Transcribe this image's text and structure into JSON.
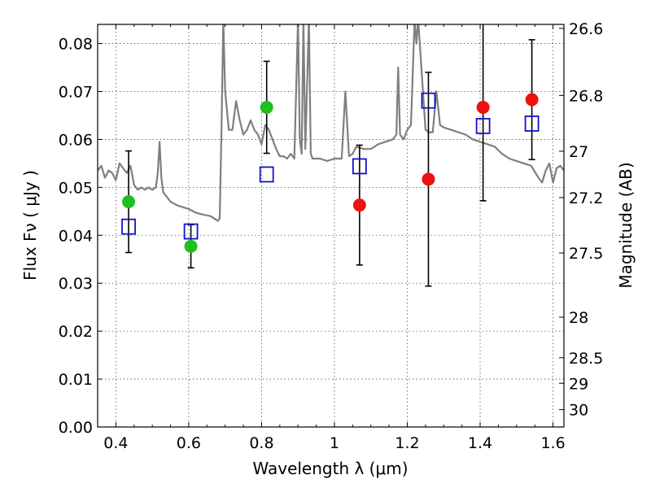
{
  "chart_data": {
    "type": "scatter",
    "xlabel": "Wavelength  λ (μm)",
    "ylabel": "Flux  Fν  ( μJy )",
    "ylabel_right": "Magnitude (AB)",
    "xlim": [
      0.35,
      1.63
    ],
    "ylim": [
      0.0,
      0.084
    ],
    "x_ticks": [
      0.4,
      0.6,
      0.8,
      1.0,
      1.2,
      1.4,
      1.6
    ],
    "x_tick_labels": [
      "0.4",
      "0.6",
      "0.8",
      "1",
      "1.2",
      "1.4",
      "1.6"
    ],
    "y_ticks": [
      0.0,
      0.01,
      0.02,
      0.03,
      0.04,
      0.05,
      0.06,
      0.07,
      0.08
    ],
    "y_tick_labels": [
      "0.00",
      "0.01",
      "0.02",
      "0.03",
      "0.04",
      "0.05",
      "0.06",
      "0.07",
      "0.08"
    ],
    "right_ticks": [
      26.6,
      26.8,
      27.0,
      27.2,
      27.5,
      28.0,
      28.5,
      29.0,
      30.0
    ],
    "right_tick_labels": [
      "26.6",
      "26.8",
      "27",
      "27.2",
      "27.5",
      "28",
      "28.5",
      "29",
      "30"
    ],
    "grid": true,
    "colors": {
      "observed_optical": "#1fbf1f",
      "observed_nir": "#ee1111",
      "model": "#1111cc",
      "spectrum": "#7f7f7f",
      "errorbar": "#000000"
    },
    "series": [
      {
        "marker": "filled-circle",
        "color": "#1fbf1f",
        "points": [
          {
            "x": 0.435,
            "y": 0.047,
            "yerr": 0.0106
          },
          {
            "x": 0.606,
            "y": 0.0377,
            "yerr": 0.0045
          },
          {
            "x": 0.814,
            "y": 0.0667,
            "yerr": 0.0096
          }
        ]
      },
      {
        "marker": "filled-circle",
        "color": "#ee1111",
        "points": [
          {
            "x": 1.069,
            "y": 0.0463,
            "yerr": 0.0125
          },
          {
            "x": 1.258,
            "y": 0.0517,
            "yerr": 0.0223
          },
          {
            "x": 1.408,
            "y": 0.0667,
            "yerr": 0.0195
          },
          {
            "x": 1.542,
            "y": 0.0683,
            "yerr": 0.0125
          }
        ]
      },
      {
        "marker": "open-square",
        "color": "#1111cc",
        "points": [
          {
            "x": 0.435,
            "y": 0.0418
          },
          {
            "x": 0.606,
            "y": 0.0408
          },
          {
            "x": 0.814,
            "y": 0.0527
          },
          {
            "x": 1.069,
            "y": 0.0544
          },
          {
            "x": 1.258,
            "y": 0.0681
          },
          {
            "x": 1.408,
            "y": 0.0628
          },
          {
            "x": 1.542,
            "y": 0.0633
          }
        ]
      },
      {
        "type": "line",
        "color": "#7f7f7f",
        "x": [
          0.35,
          0.36,
          0.37,
          0.38,
          0.39,
          0.4,
          0.41,
          0.42,
          0.43,
          0.44,
          0.45,
          0.46,
          0.47,
          0.48,
          0.49,
          0.5,
          0.51,
          0.515,
          0.52,
          0.525,
          0.53,
          0.55,
          0.57,
          0.6,
          0.62,
          0.64,
          0.66,
          0.68,
          0.685,
          0.69,
          0.695,
          0.7,
          0.71,
          0.72,
          0.73,
          0.74,
          0.75,
          0.76,
          0.77,
          0.78,
          0.79,
          0.8,
          0.81,
          0.82,
          0.83,
          0.84,
          0.85,
          0.86,
          0.87,
          0.88,
          0.89,
          0.9,
          0.905,
          0.91,
          0.915,
          0.92,
          0.93,
          0.935,
          0.94,
          0.96,
          0.98,
          1.0,
          1.02,
          1.03,
          1.04,
          1.05,
          1.06,
          1.08,
          1.1,
          1.12,
          1.14,
          1.16,
          1.17,
          1.175,
          1.18,
          1.19,
          1.2,
          1.21,
          1.22,
          1.225,
          1.23,
          1.25,
          1.26,
          1.27,
          1.28,
          1.29,
          1.3,
          1.32,
          1.34,
          1.36,
          1.38,
          1.4,
          1.42,
          1.44,
          1.46,
          1.48,
          1.5,
          1.52,
          1.54,
          1.56,
          1.57,
          1.58,
          1.59,
          1.6,
          1.61,
          1.62,
          1.63
        ],
        "y": [
          0.0535,
          0.0545,
          0.052,
          0.0535,
          0.053,
          0.0515,
          0.055,
          0.054,
          0.053,
          0.0545,
          0.0505,
          0.0495,
          0.05,
          0.0495,
          0.05,
          0.0495,
          0.05,
          0.053,
          0.0595,
          0.052,
          0.049,
          0.047,
          0.0462,
          0.0455,
          0.0447,
          0.0443,
          0.044,
          0.043,
          0.0435,
          0.062,
          0.085,
          0.07,
          0.062,
          0.062,
          0.068,
          0.064,
          0.061,
          0.062,
          0.064,
          0.062,
          0.061,
          0.059,
          0.063,
          0.062,
          0.06,
          0.058,
          0.0565,
          0.0565,
          0.056,
          0.057,
          0.056,
          0.085,
          0.06,
          0.057,
          0.085,
          0.058,
          0.085,
          0.057,
          0.056,
          0.056,
          0.0555,
          0.056,
          0.056,
          0.07,
          0.0565,
          0.057,
          0.0585,
          0.058,
          0.058,
          0.059,
          0.0595,
          0.06,
          0.061,
          0.075,
          0.061,
          0.06,
          0.062,
          0.063,
          0.085,
          0.08,
          0.085,
          0.062,
          0.0615,
          0.0615,
          0.07,
          0.063,
          0.0625,
          0.062,
          0.0615,
          0.061,
          0.06,
          0.0595,
          0.059,
          0.0585,
          0.057,
          0.056,
          0.0555,
          0.055,
          0.0545,
          0.052,
          0.051,
          0.0535,
          0.055,
          0.051,
          0.054,
          0.0545,
          0.0535
        ]
      }
    ]
  }
}
